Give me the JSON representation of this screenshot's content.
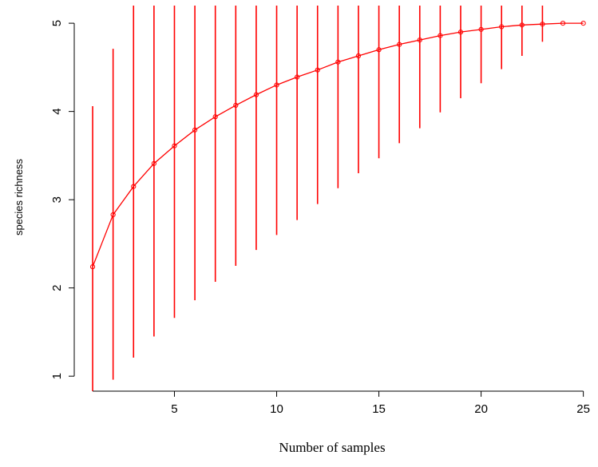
{
  "chart_data": {
    "type": "line",
    "title": "",
    "xlabel": "Number of samples",
    "ylabel": "species richness",
    "xlim": [
      0.1,
      25.6
    ],
    "ylim": [
      0.83,
      5.2
    ],
    "x_ticks": [
      5,
      10,
      15,
      20,
      25
    ],
    "y_ticks": [
      1,
      2,
      3,
      4,
      5
    ],
    "series": [
      {
        "color": "#ff0000",
        "x": [
          1,
          2,
          3,
          4,
          5,
          6,
          7,
          8,
          9,
          10,
          11,
          12,
          13,
          14,
          15,
          16,
          17,
          18,
          19,
          20,
          21,
          22,
          23,
          24,
          25
        ],
        "y": [
          2.24,
          2.83,
          3.15,
          3.41,
          3.61,
          3.79,
          3.94,
          4.07,
          4.19,
          4.3,
          4.39,
          4.47,
          4.56,
          4.63,
          4.7,
          4.76,
          4.81,
          4.86,
          4.9,
          4.93,
          4.96,
          4.98,
          4.99,
          5.0,
          5.0
        ],
        "lower": [
          0.83,
          0.96,
          1.21,
          1.45,
          1.66,
          1.86,
          2.07,
          2.25,
          2.43,
          2.6,
          2.77,
          2.95,
          3.13,
          3.3,
          3.47,
          3.64,
          3.81,
          3.99,
          4.15,
          4.32,
          4.48,
          4.63,
          4.79,
          5.0,
          5.0
        ],
        "upper": [
          4.06,
          4.71,
          5.2,
          5.2,
          5.2,
          5.2,
          5.2,
          5.2,
          5.2,
          5.2,
          5.2,
          5.2,
          5.2,
          5.2,
          5.2,
          5.2,
          5.2,
          5.2,
          5.2,
          5.2,
          5.2,
          5.2,
          5.2,
          5.0,
          5.0
        ]
      }
    ],
    "grid": false,
    "legend": "none"
  }
}
